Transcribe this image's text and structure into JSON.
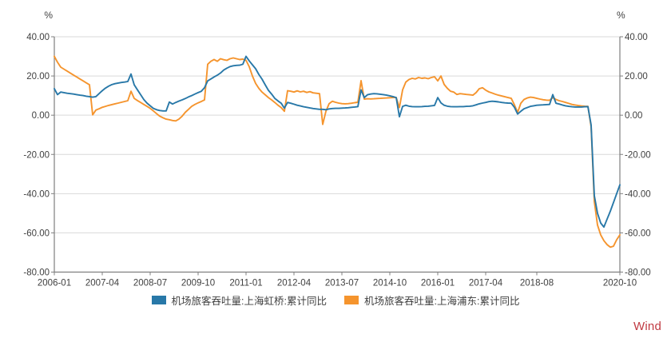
{
  "units": {
    "left": "%",
    "right": "%"
  },
  "watermark": {
    "label": "Wind",
    "color": "#C03A42"
  },
  "colors": {
    "hongqiao_blue": "#2878A8",
    "pudong_orange": "#F5942D",
    "gridline": "#D9D9D9",
    "axis": "#7F7F7F",
    "tick_text": "#3F3F3F"
  },
  "legend": [
    {
      "label": "机场旅客吞吐量:上海虹桥:累计同比",
      "color": "#2878A8"
    },
    {
      "label": "机场旅客吞吐量:上海浦东:累计同比",
      "color": "#F5942D"
    }
  ],
  "chart_data": {
    "type": "line",
    "title": "",
    "xlabel": "",
    "ylabel": "%",
    "grid": "horizontal",
    "legend_position": "bottom",
    "ylim": [
      -80,
      40
    ],
    "y_ticks": [
      "40.00",
      "20.00",
      "0.00",
      "-20.00",
      "-40.00",
      "-60.00",
      "-80.00"
    ],
    "x_start": "2006-01",
    "x_end": "2020-10",
    "x_frequency": "monthly",
    "x_ticks": [
      {
        "label": "2006-01",
        "month_index": 0
      },
      {
        "label": "2007-04",
        "month_index": 15
      },
      {
        "label": "2008-07",
        "month_index": 30
      },
      {
        "label": "2009-10",
        "month_index": 45
      },
      {
        "label": "2011-01",
        "month_index": 60
      },
      {
        "label": "2012-04",
        "month_index": 75
      },
      {
        "label": "2013-07",
        "month_index": 90
      },
      {
        "label": "2014-10",
        "month_index": 105
      },
      {
        "label": "2016-01",
        "month_index": 120
      },
      {
        "label": "2017-04",
        "month_index": 135
      },
      {
        "label": "2018-08",
        "month_index": 151
      },
      {
        "label": "2020-10",
        "month_index": 177
      }
    ],
    "series": [
      {
        "name": "机场旅客吞吐量:上海虹桥:累计同比",
        "color": "#2878A8",
        "values": [
          13.5,
          10.5,
          11.8,
          11.5,
          11.2,
          11,
          10.8,
          10.5,
          10.2,
          10,
          9.7,
          9.5,
          9.2,
          9.5,
          11,
          12.5,
          13.8,
          14.8,
          15.6,
          16.1,
          16.4,
          16.7,
          16.9,
          17.2,
          21,
          15.5,
          13,
          10.5,
          8,
          6.2,
          4.8,
          3.5,
          2.8,
          2.4,
          2.2,
          2.2,
          6.7,
          5.7,
          6.5,
          7.2,
          7.8,
          8.5,
          9.3,
          10,
          10.8,
          11.5,
          12.2,
          14,
          17.5,
          18.5,
          19.5,
          20.4,
          21.5,
          23,
          24,
          24.8,
          25.2,
          25.4,
          25.5,
          26,
          30,
          27.7,
          25.7,
          23.7,
          20.8,
          18.4,
          15.5,
          12.7,
          10.8,
          8.6,
          7.3,
          6.1,
          3.6,
          6.5,
          6.1,
          5.6,
          5.1,
          4.7,
          4.3,
          4,
          3.7,
          3.4,
          3.2,
          3,
          3,
          2.8,
          3.2,
          3.4,
          3.5,
          3.5,
          3.6,
          3.7,
          3.8,
          4,
          4.2,
          4.4,
          12.9,
          9,
          10.4,
          10.8,
          11,
          10.9,
          10.7,
          10.5,
          10.2,
          9.9,
          9.5,
          9,
          -0.8,
          4.5,
          5.1,
          4.6,
          4.4,
          4.3,
          4.3,
          4.4,
          4.5,
          4.6,
          4.8,
          5,
          9,
          6.3,
          5.1,
          4.6,
          4.4,
          4.3,
          4.3,
          4.4,
          4.4,
          4.5,
          4.6,
          4.8,
          5.3,
          5.8,
          6.2,
          6.5,
          6.9,
          7.1,
          7,
          6.8,
          6.5,
          6.3,
          6.2,
          6.1,
          4,
          0.6,
          2,
          3.3,
          3.9,
          4.5,
          4.8,
          5.1,
          5.2,
          5.3,
          5.4,
          5.5,
          10.5,
          6.1,
          5.7,
          5.2,
          4.8,
          4.5,
          4.3,
          4.2,
          4.2,
          4.2,
          4.3,
          4.4,
          -5,
          -41,
          -50,
          -55,
          -57,
          -53,
          -49,
          -44.5,
          -40,
          -35.5
        ]
      },
      {
        "name": "机场旅客吞吐量:上海浦东:累计同比",
        "color": "#F5942D",
        "values": [
          30,
          27,
          24.5,
          23.5,
          22.5,
          21.5,
          20.5,
          19.5,
          18.5,
          17.5,
          16.5,
          15.5,
          0.2,
          2.6,
          3.3,
          4,
          4.5,
          5,
          5.4,
          5.8,
          6.2,
          6.6,
          7,
          7.4,
          12.2,
          8.6,
          7.5,
          6.5,
          5.5,
          4.5,
          3.5,
          2.2,
          0.8,
          -0.5,
          -1.3,
          -2,
          -2.3,
          -2.7,
          -2.9,
          -2,
          -0.5,
          1.5,
          3,
          4.5,
          5.5,
          6.3,
          7,
          7.8,
          26,
          27.5,
          28.4,
          27.5,
          28.8,
          28.3,
          28,
          28.8,
          29.2,
          28.8,
          28.4,
          28.6,
          28,
          24.7,
          20,
          16.2,
          13.7,
          11.8,
          10.4,
          9,
          7.8,
          6.5,
          5.1,
          3.9,
          2,
          12.5,
          12.2,
          11.8,
          12.4,
          11.9,
          12.2,
          11.6,
          12,
          11.4,
          11.2,
          11,
          -4.7,
          2,
          5.9,
          7.1,
          6.6,
          6.2,
          5.9,
          5.8,
          5.9,
          6.1,
          6.4,
          6.6,
          17.6,
          8.2,
          8.4,
          8.3,
          8.4,
          8.5,
          8.6,
          8.7,
          8.8,
          8.9,
          9,
          9,
          3.9,
          12.9,
          16.9,
          18.2,
          18.8,
          18.5,
          19.2,
          18.8,
          19,
          18.6,
          19.2,
          19.6,
          17.5,
          20,
          15.7,
          13.7,
          12.2,
          11.8,
          10.6,
          11,
          10.8,
          10.6,
          10.4,
          10.2,
          11.5,
          13.5,
          14,
          12.8,
          11.9,
          11.3,
          10.7,
          10.2,
          9.8,
          9.4,
          9,
          8.6,
          5.3,
          1.4,
          6.1,
          8,
          8.8,
          9.2,
          9,
          8.6,
          8.2,
          7.9,
          7.7,
          7.6,
          9,
          8,
          7.4,
          7,
          6.5,
          6,
          5.5,
          5.2,
          4.9,
          4.7,
          4.6,
          4.5,
          -6,
          -44,
          -56,
          -61,
          -64,
          -66,
          -67.3,
          -66.8,
          -63.5,
          -61
        ]
      }
    ]
  }
}
